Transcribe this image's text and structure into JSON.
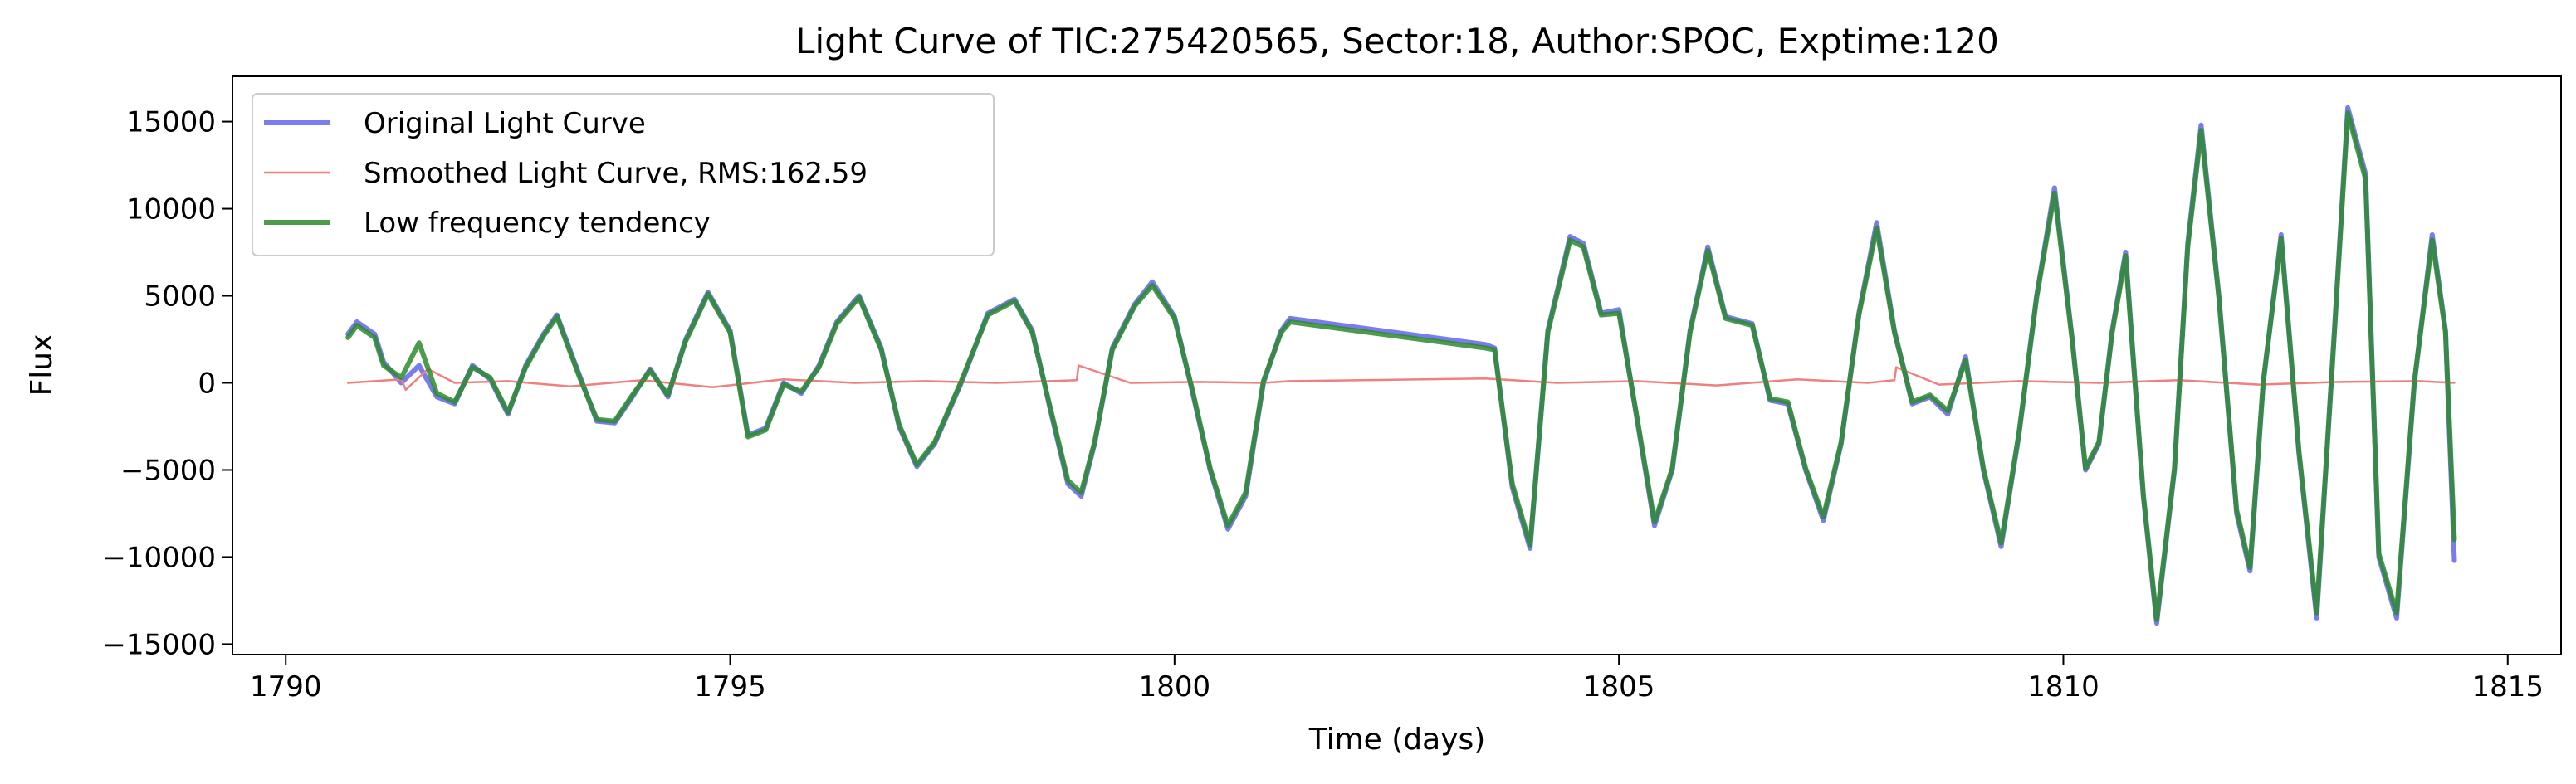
{
  "chart_data": {
    "type": "line",
    "title": "Light Curve of TIC:275420565, Sector:18, Author:SPOC, Exptime:120",
    "xlabel": "Time (days)",
    "ylabel": "Flux",
    "xlim": [
      1789.4,
      1815.6
    ],
    "ylim": [
      -15600,
      17600
    ],
    "x_ticks": [
      1790,
      1795,
      1800,
      1805,
      1810,
      1815
    ],
    "y_ticks": [
      -15000,
      -10000,
      -5000,
      0,
      5000,
      10000,
      15000
    ],
    "x_tick_labels": [
      "1790",
      "1795",
      "1800",
      "1805",
      "1810",
      "1815"
    ],
    "y_tick_labels": [
      "−15000",
      "−10000",
      "−5000",
      "0",
      "5000",
      "10000",
      "15000"
    ],
    "grid": false,
    "legend_position": "top-left",
    "gap": [
      1801.3,
      1803.5
    ],
    "series": [
      {
        "name": "Original Light Curve",
        "color": "#7b7bf0",
        "style": "thick",
        "x": [
          1790.7,
          1790.8,
          1791.0,
          1791.1,
          1791.3,
          1791.5,
          1791.7,
          1791.9,
          1792.1,
          1792.3,
          1792.5,
          1792.7,
          1792.9,
          1793.05,
          1793.3,
          1793.5,
          1793.7,
          1793.9,
          1794.1,
          1794.3,
          1794.5,
          1794.75,
          1795.0,
          1795.2,
          1795.4,
          1795.6,
          1795.8,
          1796.0,
          1796.2,
          1796.45,
          1796.7,
          1796.9,
          1797.1,
          1797.3,
          1797.6,
          1797.9,
          1798.2,
          1798.4,
          1798.6,
          1798.8,
          1798.95,
          1799.1,
          1799.3,
          1799.55,
          1799.75,
          1800.0,
          1800.2,
          1800.4,
          1800.6,
          1800.8,
          1801.0,
          1801.2,
          1801.3,
          1803.5,
          1803.6,
          1803.8,
          1804.0,
          1804.2,
          1804.45,
          1804.6,
          1804.8,
          1805.0,
          1805.2,
          1805.4,
          1805.6,
          1805.8,
          1806.0,
          1806.2,
          1806.5,
          1806.7,
          1806.9,
          1807.1,
          1807.3,
          1807.5,
          1807.7,
          1807.9,
          1808.1,
          1808.3,
          1808.5,
          1808.7,
          1808.9,
          1809.1,
          1809.3,
          1809.5,
          1809.7,
          1809.9,
          1810.1,
          1810.25,
          1810.4,
          1810.55,
          1810.7,
          1810.9,
          1811.05,
          1811.25,
          1811.4,
          1811.55,
          1811.75,
          1811.95,
          1812.1,
          1812.25,
          1812.45,
          1812.65,
          1812.85,
          1813.05,
          1813.2,
          1813.4,
          1813.55,
          1813.75,
          1813.95,
          1814.15,
          1814.3,
          1814.4
        ],
        "values": [
          2800,
          3500,
          2800,
          1200,
          0,
          1000,
          -800,
          -1200,
          1000,
          200,
          -1800,
          1000,
          2800,
          3900,
          500,
          -2200,
          -2300,
          -800,
          800,
          -800,
          2500,
          5200,
          3000,
          -3000,
          -2600,
          0,
          -600,
          1000,
          3500,
          5000,
          2000,
          -2500,
          -4800,
          -3500,
          0,
          4000,
          4800,
          3000,
          -1500,
          -5800,
          -6500,
          -3500,
          2000,
          4500,
          5800,
          3800,
          -500,
          -5000,
          -8400,
          -6500,
          0,
          3000,
          3700,
          2200,
          2000,
          -6000,
          -9500,
          3000,
          8400,
          8000,
          4000,
          4200,
          -2000,
          -8200,
          -5000,
          3000,
          7800,
          3800,
          3400,
          -1000,
          -1200,
          -5000,
          -7900,
          -3500,
          4000,
          9200,
          3000,
          -1200,
          -800,
          -1800,
          1500,
          -5000,
          -9400,
          -3000,
          5000,
          11200,
          2500,
          -5000,
          -3500,
          3000,
          7500,
          -6500,
          -13800,
          -5000,
          8000,
          14800,
          5000,
          -7500,
          -10800,
          0,
          8500,
          -4000,
          -13500,
          3000,
          15800,
          12000,
          -10000,
          -13500,
          0,
          8500,
          3000,
          -10200
        ]
      },
      {
        "name": "Smoothed Light Curve, RMS:162.59",
        "color": "#f07f7f",
        "style": "thin",
        "x": [
          1790.7,
          1791.3,
          1791.35,
          1791.6,
          1791.9,
          1792.5,
          1793.2,
          1794.0,
          1794.8,
          1795.6,
          1796.4,
          1797.2,
          1798.0,
          1798.9,
          1798.92,
          1799.5,
          1800.3,
          1801.0,
          1801.3,
          1803.5,
          1804.3,
          1805.2,
          1806.1,
          1807.0,
          1807.8,
          1808.1,
          1808.12,
          1808.6,
          1809.5,
          1810.4,
          1811.3,
          1812.2,
          1813.1,
          1814.0,
          1814.4
        ],
        "values": [
          0,
          200,
          -400,
          800,
          0,
          100,
          -200,
          150,
          -250,
          200,
          0,
          100,
          0,
          150,
          1000,
          0,
          50,
          0,
          100,
          250,
          0,
          100,
          -150,
          200,
          0,
          150,
          900,
          -100,
          100,
          0,
          150,
          -100,
          50,
          100,
          0
        ]
      },
      {
        "name": "Low frequency tendency",
        "color": "#2e8b2e",
        "style": "thick",
        "x": [
          1790.7,
          1790.8,
          1791.0,
          1791.1,
          1791.3,
          1791.5,
          1791.7,
          1791.9,
          1792.1,
          1792.3,
          1792.5,
          1792.7,
          1792.9,
          1793.05,
          1793.3,
          1793.5,
          1793.7,
          1793.9,
          1794.1,
          1794.3,
          1794.5,
          1794.75,
          1795.0,
          1795.2,
          1795.4,
          1795.6,
          1795.8,
          1796.0,
          1796.2,
          1796.45,
          1796.7,
          1796.9,
          1797.1,
          1797.3,
          1797.6,
          1797.9,
          1798.2,
          1798.4,
          1798.6,
          1798.8,
          1798.95,
          1799.1,
          1799.3,
          1799.55,
          1799.75,
          1800.0,
          1800.2,
          1800.4,
          1800.6,
          1800.8,
          1801.0,
          1801.2,
          1801.3,
          1803.5,
          1803.6,
          1803.8,
          1804.0,
          1804.2,
          1804.45,
          1804.6,
          1804.8,
          1805.0,
          1805.2,
          1805.4,
          1805.6,
          1805.8,
          1806.0,
          1806.2,
          1806.5,
          1806.7,
          1806.9,
          1807.1,
          1807.3,
          1807.5,
          1807.7,
          1807.9,
          1808.1,
          1808.3,
          1808.5,
          1808.7,
          1808.9,
          1809.1,
          1809.3,
          1809.5,
          1809.7,
          1809.9,
          1810.1,
          1810.25,
          1810.4,
          1810.55,
          1810.7,
          1810.9,
          1811.05,
          1811.25,
          1811.4,
          1811.55,
          1811.75,
          1811.95,
          1812.1,
          1812.25,
          1812.45,
          1812.65,
          1812.85,
          1813.05,
          1813.2,
          1813.4,
          1813.55,
          1813.75,
          1813.95,
          1814.15,
          1814.3,
          1814.4
        ],
        "values": [
          2600,
          3300,
          2600,
          1000,
          300,
          2300,
          -600,
          -1100,
          900,
          300,
          -1700,
          900,
          2700,
          3800,
          400,
          -2100,
          -2200,
          -700,
          700,
          -700,
          2400,
          5100,
          2900,
          -3100,
          -2700,
          -100,
          -500,
          900,
          3400,
          4900,
          1900,
          -2400,
          -4700,
          -3400,
          100,
          3900,
          4700,
          2900,
          -1400,
          -5600,
          -6300,
          -3400,
          1900,
          4400,
          5600,
          3700,
          -400,
          -4900,
          -8200,
          -6300,
          100,
          2900,
          3500,
          2000,
          1900,
          -5800,
          -9300,
          2900,
          8200,
          7800,
          3900,
          4000,
          -1900,
          -8000,
          -4900,
          2900,
          7600,
          3700,
          3300,
          -900,
          -1100,
          -4900,
          -7700,
          -3400,
          3900,
          8900,
          2900,
          -1100,
          -700,
          -1600,
          1300,
          -4900,
          -9200,
          -2900,
          4900,
          10900,
          2400,
          -4900,
          -3400,
          2900,
          7300,
          -6400,
          -13600,
          -4900,
          7800,
          14500,
          4900,
          -7300,
          -10600,
          100,
          8300,
          -3900,
          -13200,
          2900,
          15500,
          11700,
          -9800,
          -13200,
          100,
          8200,
          2900,
          -9000
        ]
      }
    ]
  }
}
